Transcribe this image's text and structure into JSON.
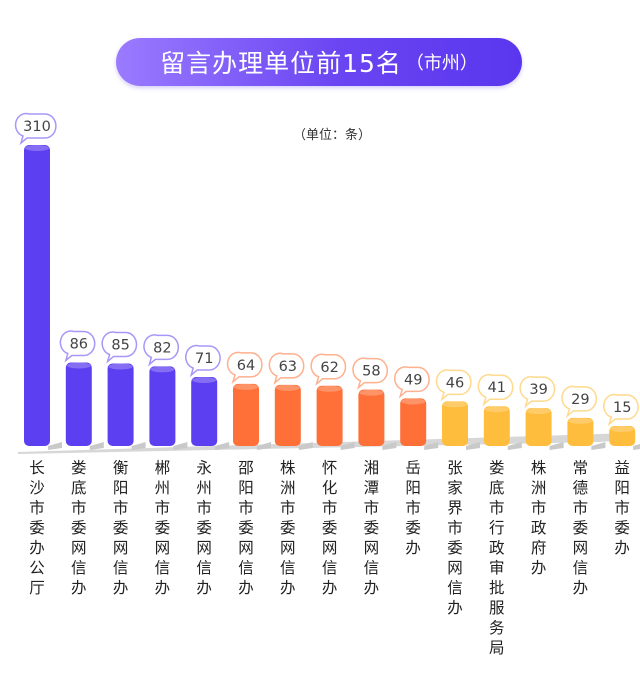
{
  "header": {
    "title": "留言办理单位前15名",
    "subtitle": "（市州）",
    "unit": "（单位：条）"
  },
  "colors": {
    "purple": "#5b3ff0",
    "orange": "#ff7038",
    "yellow": "#ffbd3e",
    "shadow": "#d7d7d7"
  },
  "chart_data": {
    "type": "bar",
    "categories": [
      "长沙市委办公厅",
      "娄底市委网信办",
      "衡阳市委网信办",
      "郴州市委网信办",
      "永州市委网信办",
      "邵阳市委网信办",
      "株洲市委网信办",
      "怀化市委网信办",
      "湘潭市委网信办",
      "岳阳市委办",
      "张家界市委网信办",
      "娄底市行政审批服务局",
      "株洲市政府办",
      "常德市委网信办",
      "益阳市委办"
    ],
    "values": [
      310,
      86,
      85,
      82,
      71,
      64,
      63,
      62,
      58,
      49,
      46,
      41,
      39,
      29,
      15
    ],
    "color_groups": [
      "purple",
      "purple",
      "purple",
      "purple",
      "purple",
      "orange",
      "orange",
      "orange",
      "orange",
      "orange",
      "yellow",
      "yellow",
      "yellow",
      "yellow",
      "yellow"
    ],
    "title": "留言办理单位前15名（市州）",
    "ylabel": "（单位：条）",
    "ylim": [
      0,
      310
    ],
    "grid": false,
    "legend": "none"
  }
}
